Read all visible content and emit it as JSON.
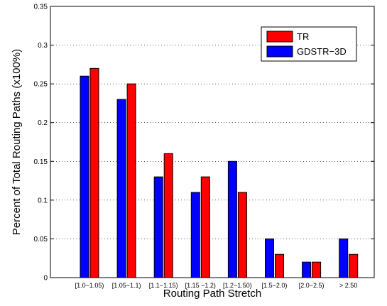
{
  "chart_data": {
    "type": "bar",
    "title": "",
    "xlabel": "Routing Path Stretch",
    "ylabel": "Percent of Total Routing Paths (x100%)",
    "ylim": [
      0,
      0.35
    ],
    "yticks": [
      "0",
      "0.05",
      "0.1",
      "0.15",
      "0.2",
      "0.25",
      "0.3",
      "0.35"
    ],
    "grid": "dotted-horizontal",
    "legend_position": "top-right",
    "categories": [
      "[1.0−1.05)",
      "[1.05−1.1)",
      "[1.1−1.15)",
      "[1.15 −1.2)",
      "[1.2−1.50)",
      "[1.5−2.0)",
      "[2.0−2.5)",
      "> 2.50"
    ],
    "series": [
      {
        "name": "GDSTR−3D",
        "color": "#0000ff",
        "values": [
          0.26,
          0.23,
          0.13,
          0.11,
          0.15,
          0.05,
          0.02,
          0.05
        ]
      },
      {
        "name": "TR",
        "color": "#ff0000",
        "values": [
          0.27,
          0.25,
          0.16,
          0.13,
          0.11,
          0.03,
          0.02,
          0.03
        ]
      }
    ],
    "legend_order": [
      1,
      0
    ]
  }
}
